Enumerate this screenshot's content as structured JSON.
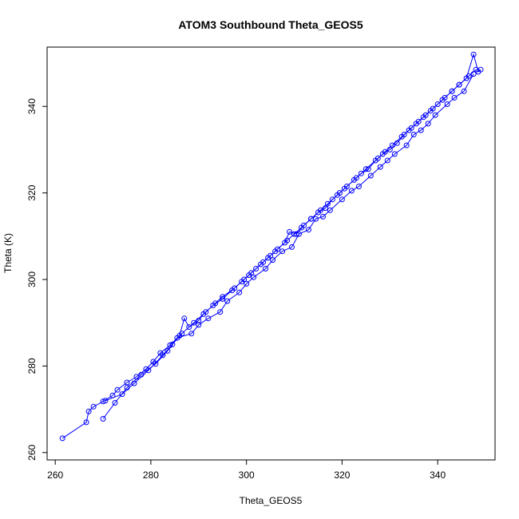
{
  "chart_data": {
    "type": "scatter",
    "title": "ATOM3 Southbound Theta_GEOS5",
    "xlabel": "Theta_GEOS5",
    "ylabel": "Theta (K)",
    "xlim": [
      258.3,
      352.0
    ],
    "ylim": [
      258.3,
      353.7
    ],
    "x_ticks": [
      260,
      280,
      300,
      320,
      340
    ],
    "y_ticks": [
      260,
      280,
      300,
      320,
      340
    ],
    "x_tick_labels": [
      "260",
      "280",
      "300",
      "320",
      "340"
    ],
    "y_tick_labels": [
      "260",
      "280",
      "300",
      "320",
      "340"
    ],
    "grid": false,
    "legend": "none",
    "series_color": "#0000ff",
    "marker": "open-circle",
    "connected": true,
    "series": [
      {
        "x": [
          261.5,
          266.5,
          267.0,
          268.0,
          270.0,
          272.0,
          273.0,
          275.0,
          277.0,
          279.0,
          280.5,
          282.0,
          284.0,
          286.0,
          287.0,
          288.0,
          290.0,
          291.0,
          293.0,
          295.0,
          297.0,
          299.0,
          300.5,
          302.0,
          303.5,
          305.0,
          306.5,
          308.0,
          309.0,
          310.5,
          312.0,
          313.5,
          315.0,
          316.5,
          318.0,
          319.5,
          321.0,
          322.5,
          324.0,
          325.5,
          327.0,
          328.5,
          330.0,
          331.5,
          333.0,
          334.0,
          335.5,
          337.0,
          338.5,
          340.0,
          341.5,
          343.0,
          344.5,
          346.0,
          347.5,
          348.5,
          349.0
        ],
        "y": [
          263.3,
          267.0,
          269.5,
          270.6,
          271.8,
          273.2,
          274.5,
          276.2,
          277.5,
          279.3,
          281.0,
          283.0,
          284.8,
          287.0,
          291.0,
          289.0,
          290.5,
          292.0,
          294.0,
          295.5,
          297.5,
          299.5,
          301.0,
          302.5,
          304.0,
          305.5,
          307.0,
          308.5,
          311.0,
          310.5,
          312.5,
          314.0,
          315.5,
          316.5,
          318.5,
          320.0,
          321.5,
          323.0,
          324.5,
          325.5,
          327.5,
          329.0,
          330.0,
          331.5,
          333.5,
          334.5,
          336.0,
          337.5,
          339.0,
          340.5,
          342.0,
          343.5,
          345.0,
          346.5,
          352.0,
          348.0,
          348.5
        ]
      },
      {
        "x": [
          270.0,
          272.5,
          275.0,
          278.0,
          281.0,
          283.5,
          285.5,
          288.5,
          290.0,
          292.0,
          294.5,
          296.0,
          298.5,
          300.0,
          301.5,
          304.0,
          305.5,
          307.5,
          309.5,
          311.0,
          313.0,
          314.5,
          316.0,
          317.5,
          320.0,
          322.0,
          323.5,
          326.0,
          328.0,
          329.5,
          331.0,
          333.5,
          335.0,
          336.5,
          338.0,
          339.5,
          342.0,
          343.5,
          345.5,
          347.5
        ],
        "y": [
          267.8,
          271.5,
          275.0,
          278.0,
          280.5,
          283.5,
          286.5,
          287.5,
          289.5,
          291.0,
          292.5,
          295.0,
          297.0,
          299.0,
          300.5,
          302.5,
          304.5,
          306.5,
          307.5,
          310.5,
          311.5,
          314.0,
          314.5,
          316.0,
          318.5,
          320.5,
          321.5,
          324.0,
          326.0,
          327.5,
          329.0,
          331.0,
          333.5,
          334.5,
          336.0,
          338.0,
          340.5,
          342.0,
          343.5,
          347.5
        ]
      },
      {
        "x": [
          270.5,
          274.0,
          276.5,
          279.5,
          282.5,
          284.5,
          286.5,
          289.0,
          291.5,
          293.5,
          295.0,
          297.5,
          299.5,
          301.0,
          303.0,
          304.5,
          306.0,
          308.5,
          310.0,
          311.5,
          313.5,
          315.5,
          317.0,
          319.0,
          320.5,
          323.0,
          325.0,
          327.5,
          329.0,
          330.5,
          332.5,
          334.5,
          336.0,
          337.5,
          339.0,
          341.0,
          343.0,
          344.5,
          346.5,
          348.0
        ],
        "y": [
          272.0,
          273.5,
          276.0,
          279.0,
          282.5,
          285.0,
          287.5,
          290.0,
          292.5,
          294.5,
          296.0,
          298.0,
          300.0,
          301.5,
          303.5,
          305.0,
          306.5,
          309.0,
          310.5,
          312.0,
          314.0,
          316.0,
          317.5,
          319.5,
          321.0,
          323.5,
          325.5,
          328.0,
          329.5,
          331.0,
          333.0,
          335.0,
          336.5,
          338.0,
          339.5,
          341.5,
          343.5,
          345.0,
          347.0,
          348.5
        ]
      }
    ]
  }
}
